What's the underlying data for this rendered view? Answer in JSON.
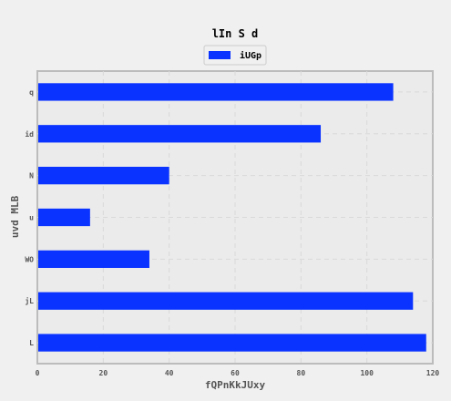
{
  "chart_data": {
    "type": "bar",
    "orientation": "horizontal",
    "title": "lIn S d",
    "xlabel": "fQPnKkJUxy",
    "ylabel": "uvd MLB",
    "categories": [
      "q",
      "id",
      "N",
      "u",
      "WO",
      "jL",
      "L"
    ],
    "series": [
      {
        "name": "iUGp",
        "values": [
          108,
          86,
          40,
          16,
          34,
          114,
          118
        ],
        "color": "#0a33ff"
      }
    ],
    "xlim": [
      0,
      120
    ],
    "xticks": [
      0,
      20,
      40,
      60,
      80,
      100,
      120
    ],
    "grid": true,
    "legend_position": "top-center"
  }
}
